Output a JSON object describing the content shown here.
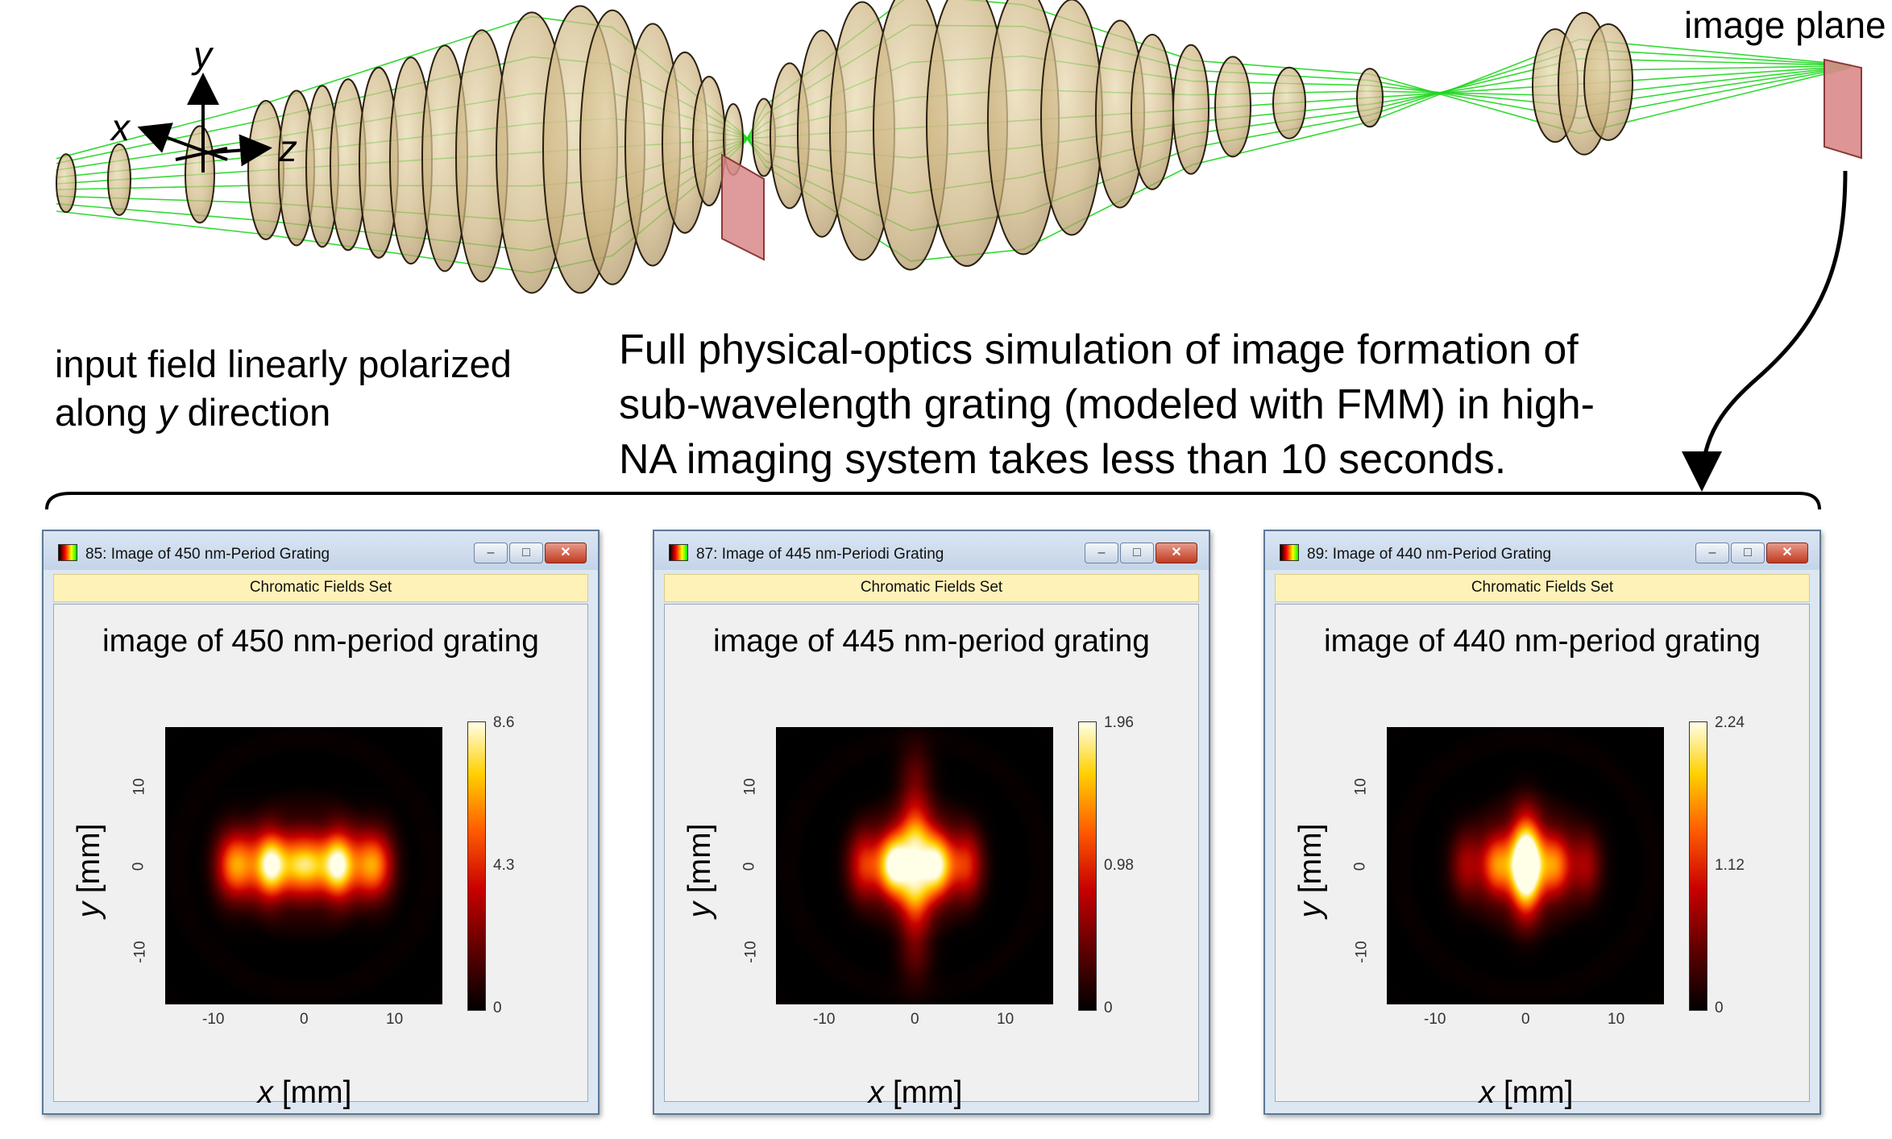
{
  "axes": {
    "x": "x",
    "y": "y",
    "z": "z"
  },
  "image_plane_label": "image plane",
  "input_caption": {
    "line1": "input field linearly polarized",
    "line2_prefix": "along ",
    "line2_var": "y",
    "line2_suffix": " direction"
  },
  "sim_caption": {
    "line1": "Full physical-optics simulation of image formation of",
    "line2": "sub-wavelength grating (modeled with FMM) in high-",
    "line3": "NA imaging system takes less than 10 seconds."
  },
  "windows": [
    {
      "title": "85: Image of 450 nm-Period Grating",
      "subtitle": "Chromatic Fields Set",
      "plot_title_prefix": "image of ",
      "plot_value": "450",
      "plot_title_suffix": "nm-period grating",
      "colorbar": [
        "8.6",
        "4.3",
        "0"
      ]
    },
    {
      "title": "87: Image of 445 nm-Periodi Grating",
      "subtitle": "Chromatic Fields Set",
      "plot_title_prefix": "image of ",
      "plot_value": "445",
      "plot_title_suffix": "nm-period grating",
      "colorbar": [
        "1.96",
        "0.98",
        "0"
      ]
    },
    {
      "title": "89: Image of 440 nm-Period Grating",
      "subtitle": "Chromatic Fields Set",
      "plot_title_prefix": "image of ",
      "plot_value": "440",
      "plot_title_suffix": "nm-period grating",
      "colorbar": [
        "2.24",
        "1.12",
        "0"
      ]
    }
  ],
  "axis_ticks": {
    "x": [
      "-10",
      "0",
      "10"
    ],
    "y": [
      "10",
      "0",
      "-10"
    ]
  },
  "axis_labels": {
    "x_var": "x",
    "x_unit": " [mm]",
    "y_var": "y",
    "y_unit": " [mm]"
  },
  "window_buttons": {
    "minimize": "–",
    "maximize": "□",
    "close": "✕"
  },
  "chart_data": [
    {
      "type": "heatmap",
      "title": "image of 450nm-period grating",
      "xlabel": "x [mm]",
      "ylabel": "y [mm]",
      "xlim": [
        -15,
        15
      ],
      "ylim": [
        -15,
        15
      ],
      "colorbar_range": [
        0,
        8.6
      ],
      "x_tick_labels": [
        "-10",
        "0",
        "10"
      ],
      "y_tick_labels": [
        "10",
        "0",
        "-10"
      ],
      "peaks": [
        {
          "x": -8.2,
          "y": 0,
          "value": 4.2
        },
        {
          "x": -6.5,
          "y": 0,
          "value": 3.6
        },
        {
          "x": -3.7,
          "y": 0,
          "value": 8.6
        },
        {
          "x": -1.0,
          "y": 0,
          "value": 5.0
        },
        {
          "x": 1.0,
          "y": 0,
          "value": 5.0
        },
        {
          "x": 3.7,
          "y": 0,
          "value": 8.6
        },
        {
          "x": 6.5,
          "y": 0,
          "value": 3.6
        },
        {
          "x": 8.2,
          "y": 0,
          "value": 4.2
        }
      ]
    },
    {
      "type": "heatmap",
      "title": "image of 445nm-period grating",
      "xlabel": "x [mm]",
      "ylabel": "y [mm]",
      "xlim": [
        -15,
        15
      ],
      "ylim": [
        -15,
        15
      ],
      "colorbar_range": [
        0,
        1.96
      ],
      "x_tick_labels": [
        "-10",
        "0",
        "10"
      ],
      "y_tick_labels": [
        "10",
        "0",
        "-10"
      ],
      "peaks": [
        {
          "x": -2.4,
          "y": 0,
          "value": 1.96
        },
        {
          "x": 2.4,
          "y": 0,
          "value": 1.85
        },
        {
          "x": 0,
          "y": 3.0,
          "value": 1.35
        },
        {
          "x": 0,
          "y": -3.0,
          "value": 1.35
        },
        {
          "x": -5.5,
          "y": 0,
          "value": 0.98
        },
        {
          "x": 5.5,
          "y": 0,
          "value": 0.98
        },
        {
          "x": 0,
          "y": 9.5,
          "value": 0.4
        },
        {
          "x": 0,
          "y": -9.5,
          "value": 0.4
        }
      ]
    },
    {
      "type": "heatmap",
      "title": "image of 440nm-period grating",
      "xlabel": "x [mm]",
      "ylabel": "y [mm]",
      "xlim": [
        -15,
        15
      ],
      "ylim": [
        -15,
        15
      ],
      "colorbar_range": [
        0,
        2.24
      ],
      "x_tick_labels": [
        "-10",
        "0",
        "10"
      ],
      "y_tick_labels": [
        "10",
        "0",
        "-10"
      ],
      "peaks": [
        {
          "x": 0,
          "y": 0,
          "value": 2.24
        },
        {
          "x": -3.2,
          "y": 0,
          "value": 1.5
        },
        {
          "x": 3.2,
          "y": 0,
          "value": 1.5
        },
        {
          "x": 0,
          "y": 3.2,
          "value": 1.0
        },
        {
          "x": 0,
          "y": -3.2,
          "value": 1.0
        },
        {
          "x": -6.5,
          "y": 0,
          "value": 0.7
        },
        {
          "x": 6.5,
          "y": 0,
          "value": 0.7
        }
      ]
    }
  ]
}
